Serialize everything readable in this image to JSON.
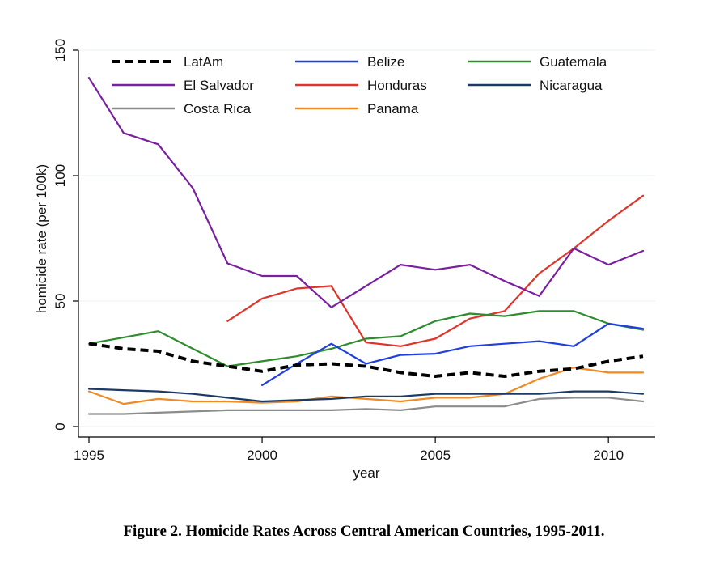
{
  "caption": "Figure 2. Homicide Rates Across Central American Countries, 1995-2011.",
  "chart_data": {
    "type": "line",
    "title": "",
    "xlabel": "year",
    "ylabel": "homicide rate (per 100k)",
    "xlim": [
      1995,
      2011
    ],
    "ylim": [
      0,
      150
    ],
    "xticks": [
      1995,
      2000,
      2005,
      2010
    ],
    "yticks": [
      0,
      50,
      100,
      150
    ],
    "grid": true,
    "legend_position": "top",
    "x": [
      1995,
      1996,
      1997,
      1998,
      1999,
      2000,
      2001,
      2002,
      2003,
      2004,
      2005,
      2006,
      2007,
      2008,
      2009,
      2010,
      2011
    ],
    "series": [
      {
        "name": "LatAm",
        "color": "#000000",
        "dashed": true,
        "values": [
          33,
          31,
          30,
          26,
          24,
          22,
          24.5,
          25,
          24,
          21.5,
          20,
          21.5,
          20,
          22,
          23,
          26,
          28
        ]
      },
      {
        "name": "Belize",
        "color": "#1f3fe0",
        "dashed": false,
        "values": [
          null,
          null,
          null,
          null,
          null,
          16.5,
          25,
          33,
          25,
          28.5,
          29,
          32,
          33,
          34,
          32,
          41,
          39
        ]
      },
      {
        "name": "Guatemala",
        "color": "#2e8b2e",
        "dashed": false,
        "values": [
          33,
          35.5,
          38,
          31,
          24,
          26,
          28,
          31,
          35,
          36,
          42,
          45,
          44,
          46,
          46,
          41,
          38.5
        ]
      },
      {
        "name": "El Salvador",
        "color": "#7a1fa0",
        "dashed": false,
        "values": [
          139,
          117,
          112.5,
          95,
          65,
          60,
          60,
          47.5,
          56,
          64.5,
          62.5,
          64.5,
          58,
          52,
          71,
          64.5,
          70
        ]
      },
      {
        "name": "Honduras",
        "color": "#e0342a",
        "dashed": false,
        "values": [
          null,
          null,
          null,
          null,
          42,
          51,
          55,
          56,
          33.5,
          32,
          35,
          43,
          46,
          61,
          71,
          82,
          92
        ]
      },
      {
        "name": "Nicaragua",
        "color": "#1c3a66",
        "dashed": false,
        "values": [
          15,
          14.5,
          14,
          13,
          11.5,
          10,
          10.5,
          11,
          12,
          12,
          13,
          13,
          13,
          13,
          14,
          14,
          13
        ]
      },
      {
        "name": "Costa Rica",
        "color": "#8c8c8c",
        "dashed": false,
        "values": [
          5,
          5,
          5.5,
          6,
          6.5,
          6.5,
          6.5,
          6.5,
          7,
          6.5,
          8,
          8,
          8,
          11,
          11.5,
          11.5,
          10
        ]
      },
      {
        "name": "Panama",
        "color": "#f08a24",
        "dashed": false,
        "values": [
          14,
          9,
          11,
          10,
          10,
          9.5,
          10,
          12,
          11,
          10,
          11.5,
          11.5,
          13,
          19,
          23.5,
          21.5,
          21.5
        ]
      }
    ]
  }
}
